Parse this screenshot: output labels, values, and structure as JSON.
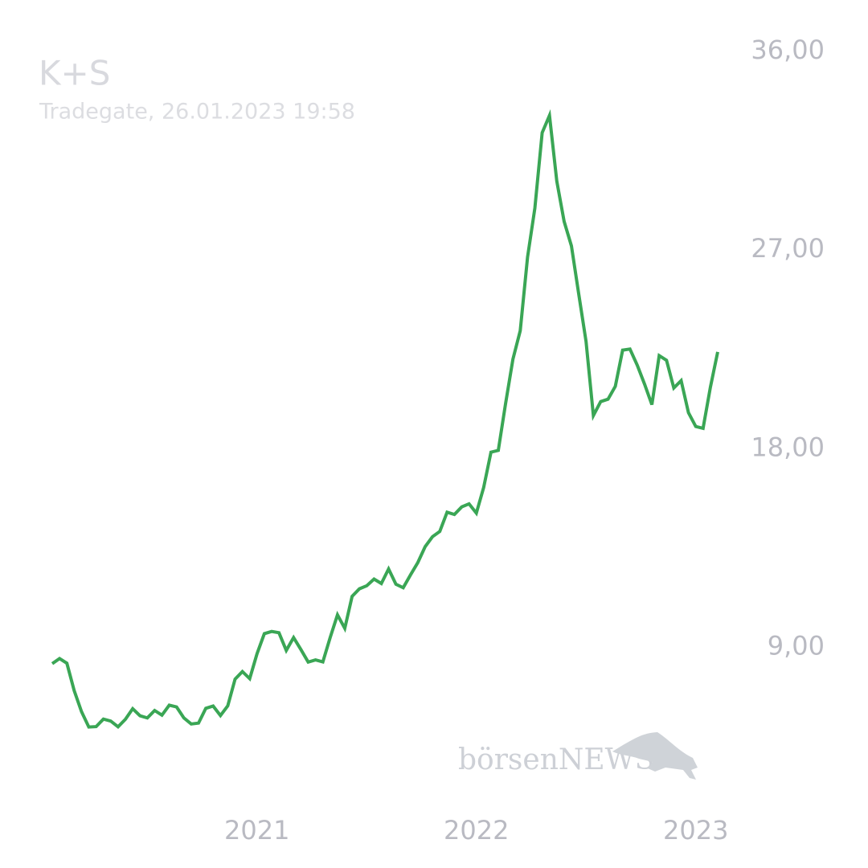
{
  "chart_data": {
    "type": "line",
    "title": "K+S",
    "subtitle": "Tradegate, 26.01.2023 19:58",
    "watermark": "börsenNEWS",
    "categories": [
      null,
      null,
      null,
      null,
      null,
      null,
      null,
      null,
      null,
      null,
      null,
      null,
      null,
      null,
      null,
      null,
      null,
      null,
      null,
      null,
      null,
      null,
      null,
      null,
      null,
      null,
      null,
      null,
      "2021",
      null,
      null,
      null,
      null,
      null,
      null,
      null,
      null,
      null,
      null,
      null,
      null,
      null,
      null,
      null,
      null,
      null,
      null,
      null,
      null,
      null,
      null,
      null,
      null,
      null,
      null,
      null,
      null,
      null,
      "2022",
      null,
      null,
      null,
      null,
      null,
      null,
      null,
      null,
      null,
      null,
      null,
      null,
      null,
      null,
      null,
      null,
      null,
      null,
      null,
      null,
      null,
      null,
      null,
      null,
      null,
      null,
      null,
      null,
      null,
      "2023",
      null,
      null,
      null
    ],
    "series": [
      {
        "name": "K+S",
        "color": "#3aa655",
        "values": [
          8.27,
          8.5,
          8.29,
          7.05,
          6.1,
          5.4,
          5.42,
          5.76,
          5.67,
          5.41,
          5.75,
          6.23,
          5.91,
          5.81,
          6.15,
          5.94,
          6.39,
          6.31,
          5.81,
          5.54,
          5.58,
          6.25,
          6.35,
          5.92,
          6.36,
          7.57,
          7.91,
          7.59,
          8.72,
          9.63,
          9.73,
          9.67,
          8.87,
          9.45,
          8.91,
          8.34,
          8.44,
          8.35,
          9.45,
          10.48,
          9.87,
          11.32,
          11.66,
          11.8,
          12.1,
          11.9,
          12.56,
          11.87,
          11.71,
          12.29,
          12.85,
          13.57,
          14.02,
          14.26,
          15.13,
          15.03,
          15.37,
          15.51,
          15.09,
          16.25,
          17.85,
          17.93,
          20.06,
          22.06,
          23.35,
          26.68,
          28.9,
          32.32,
          33.1,
          30.12,
          28.3,
          27.19,
          25.01,
          22.86,
          19.51,
          20.14,
          20.25,
          20.83,
          22.47,
          22.52,
          21.79,
          20.93,
          20.0,
          22.22,
          22.01,
          20.76,
          21.09,
          19.64,
          19.01,
          18.93,
          20.79,
          22.39
        ]
      }
    ],
    "ylim": [
      2,
      36
    ],
    "yticks": [
      {
        "value": 9,
        "label": "9,00"
      },
      {
        "value": 18,
        "label": "18,00"
      },
      {
        "value": 27,
        "label": "27,00"
      },
      {
        "value": 36,
        "label": "36,00"
      }
    ],
    "grid": false
  }
}
